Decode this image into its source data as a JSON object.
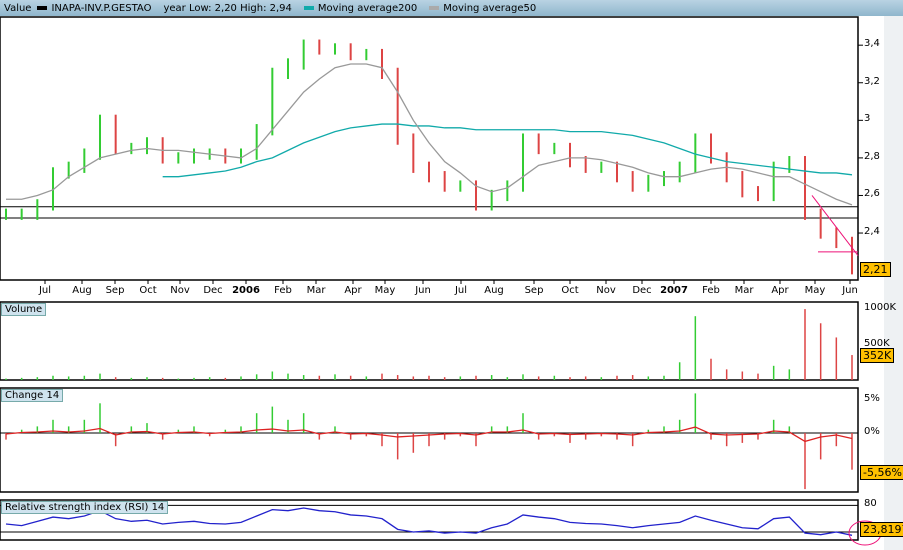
{
  "legend": {
    "value_label": "Value",
    "symbol": "INAPA-INV.P.GESTAO",
    "year_range": "year Low: 2,20 High: 2,94",
    "ma200_label": "Moving average200",
    "ma50_label": "Moving average50"
  },
  "colors": {
    "up": "#33cc33",
    "down": "#dd4444",
    "ma200": "#11aaaa",
    "ma50": "#999999",
    "trend": "#ee1177",
    "rsi": "#2222cc",
    "highlight": "#ffc000"
  },
  "panels": {
    "volume": "Volume",
    "change": "Change 14",
    "rsi": "Relative strength index (RSI) 14"
  },
  "chart_data": [
    {
      "type": "bar",
      "title": "INAPA-INV.P.GESTAO",
      "ylim": [
        2.15,
        3.55
      ],
      "y_ticks": [
        "3,4",
        "3,2",
        "3",
        "2,8",
        "2,6",
        "2,4"
      ],
      "x_labels": [
        "Jul",
        "Aug",
        "Sep",
        "Oct",
        "Nov",
        "Dec",
        "2006",
        "Feb",
        "Mar",
        "Apr",
        "May",
        "Jun",
        "Jul",
        "Aug",
        "Sep",
        "Oct",
        "Nov",
        "Dec",
        "2007",
        "Feb",
        "Mar",
        "Apr",
        "May",
        "Jun"
      ],
      "x_labels_bold": [
        "2006",
        "2007"
      ],
      "last_value": "2,21",
      "horizontal_lines": [
        2.54,
        2.48
      ],
      "close": [
        2.5,
        2.5,
        2.55,
        2.72,
        2.75,
        2.82,
        3.0,
        2.85,
        2.85,
        2.88,
        2.8,
        2.8,
        2.82,
        2.82,
        2.8,
        2.82,
        2.95,
        3.25,
        3.3,
        3.4,
        3.38,
        3.38,
        3.35,
        3.35,
        3.25,
        2.9,
        2.75,
        2.7,
        2.65,
        2.65,
        2.55,
        2.6,
        2.65,
        2.9,
        2.85,
        2.85,
        2.78,
        2.75,
        2.75,
        2.7,
        2.65,
        2.68,
        2.7,
        2.75,
        2.9,
        2.8,
        2.7,
        2.62,
        2.6,
        2.75,
        2.78,
        2.5,
        2.4,
        2.35,
        2.21
      ],
      "ma200": [
        null,
        null,
        null,
        null,
        null,
        null,
        null,
        null,
        null,
        null,
        2.7,
        2.7,
        2.71,
        2.72,
        2.73,
        2.75,
        2.78,
        2.8,
        2.84,
        2.88,
        2.91,
        2.94,
        2.96,
        2.97,
        2.98,
        2.98,
        2.97,
        2.97,
        2.96,
        2.96,
        2.95,
        2.95,
        2.95,
        2.95,
        2.95,
        2.95,
        2.94,
        2.94,
        2.94,
        2.93,
        2.92,
        2.9,
        2.88,
        2.85,
        2.82,
        2.8,
        2.78,
        2.77,
        2.76,
        2.75,
        2.74,
        2.73,
        2.72,
        2.72,
        2.71
      ],
      "ma50": [
        2.58,
        2.58,
        2.6,
        2.63,
        2.7,
        2.75,
        2.8,
        2.82,
        2.84,
        2.85,
        2.84,
        2.84,
        2.83,
        2.82,
        2.81,
        2.8,
        2.85,
        2.95,
        3.05,
        3.15,
        3.22,
        3.28,
        3.3,
        3.3,
        3.28,
        3.15,
        3.0,
        2.88,
        2.78,
        2.72,
        2.65,
        2.62,
        2.64,
        2.7,
        2.76,
        2.78,
        2.8,
        2.8,
        2.79,
        2.77,
        2.75,
        2.72,
        2.7,
        2.7,
        2.72,
        2.74,
        2.75,
        2.74,
        2.72,
        2.7,
        2.7,
        2.66,
        2.62,
        2.58,
        2.55
      ]
    },
    {
      "type": "bar",
      "title": "Volume",
      "unit": "K",
      "ylim": [
        0,
        1100
      ],
      "y_ticks": [
        "1000K",
        "500K"
      ],
      "last_value": "352K",
      "values": [
        20,
        30,
        40,
        60,
        50,
        60,
        90,
        40,
        30,
        40,
        30,
        20,
        30,
        40,
        30,
        50,
        80,
        120,
        90,
        70,
        60,
        80,
        60,
        50,
        90,
        70,
        50,
        60,
        40,
        50,
        60,
        70,
        40,
        80,
        50,
        60,
        40,
        50,
        40,
        60,
        70,
        50,
        60,
        250,
        900,
        300,
        150,
        120,
        90,
        200,
        150,
        1000,
        800,
        600,
        352
      ]
    },
    {
      "type": "bar",
      "title": "Change 14",
      "unit": "%",
      "ylim": [
        -9,
        6
      ],
      "y_ticks": [
        "5%",
        "0%"
      ],
      "last_value": "-5,56%",
      "values": [
        -1,
        0.5,
        1,
        2,
        1,
        2,
        4.5,
        -2,
        1,
        1.5,
        -1,
        0.5,
        1,
        -0.5,
        0.5,
        1,
        3,
        4,
        2,
        3,
        -1,
        1,
        -1,
        -0.5,
        -2,
        -4,
        -3,
        -2,
        -1,
        -0.5,
        -2,
        1,
        1,
        3,
        -1,
        -0.5,
        -1.5,
        -1,
        -0.5,
        -1,
        -2,
        0.5,
        1,
        2,
        6,
        -1,
        -2,
        -1.5,
        -1,
        2,
        1,
        -8.5,
        -4,
        -2,
        -5.56
      ]
    },
    {
      "type": "line",
      "title": "Relative strength index (RSI) 14",
      "ylim": [
        15,
        90
      ],
      "y_ticks": [
        "80"
      ],
      "last_value": "23,8197",
      "values": [
        45,
        42,
        50,
        58,
        55,
        60,
        70,
        55,
        50,
        52,
        45,
        48,
        50,
        46,
        45,
        48,
        60,
        72,
        70,
        75,
        70,
        68,
        62,
        60,
        55,
        35,
        30,
        32,
        28,
        30,
        28,
        38,
        45,
        62,
        58,
        55,
        48,
        46,
        45,
        42,
        38,
        42,
        45,
        48,
        60,
        52,
        45,
        38,
        36,
        55,
        58,
        28,
        25,
        30,
        23.8
      ]
    }
  ]
}
